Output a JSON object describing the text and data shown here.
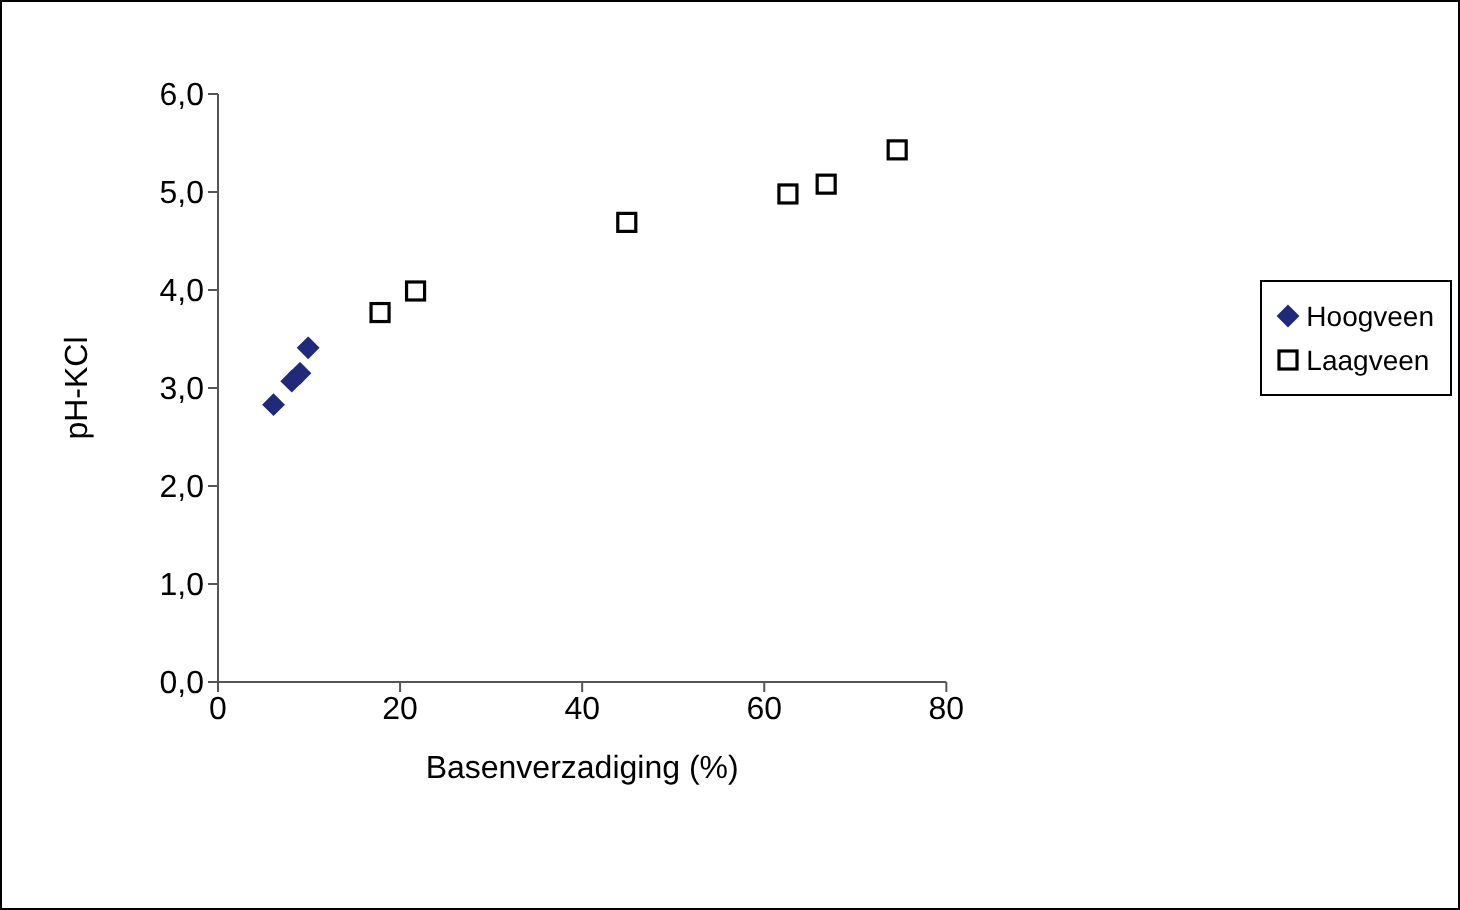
{
  "chart_data": {
    "type": "scatter",
    "xlabel": "Basenverzadiging (%)",
    "ylabel": "pH-KCl",
    "xlim": [
      0,
      80
    ],
    "xticks": [
      0,
      20,
      40,
      60,
      80
    ],
    "ylim": [
      0,
      6
    ],
    "yticks": [
      {
        "value": 0,
        "label": "0,0"
      },
      {
        "value": 1,
        "label": "1,0"
      },
      {
        "value": 2,
        "label": "2,0"
      },
      {
        "value": 3,
        "label": "3,0"
      },
      {
        "value": 4,
        "label": "4,0"
      },
      {
        "value": 5,
        "label": "5,0"
      },
      {
        "value": 6,
        "label": "6,0"
      }
    ],
    "grid": false,
    "legend": "right",
    "series": [
      {
        "name": "Hoogveen",
        "color": "#1f2a7a",
        "marker": "diamond",
        "x": [
          6.1,
          8.1,
          9.0,
          9.9
        ],
        "values": [
          2.83,
          3.07,
          3.15,
          3.41
        ]
      },
      {
        "name": "Laagveen",
        "color": "#000000",
        "marker": "square",
        "x": [
          17.8,
          21.7,
          44.9,
          62.6,
          66.8,
          74.6
        ],
        "values": [
          3.77,
          3.99,
          4.69,
          4.98,
          5.08,
          5.43
        ]
      }
    ]
  }
}
